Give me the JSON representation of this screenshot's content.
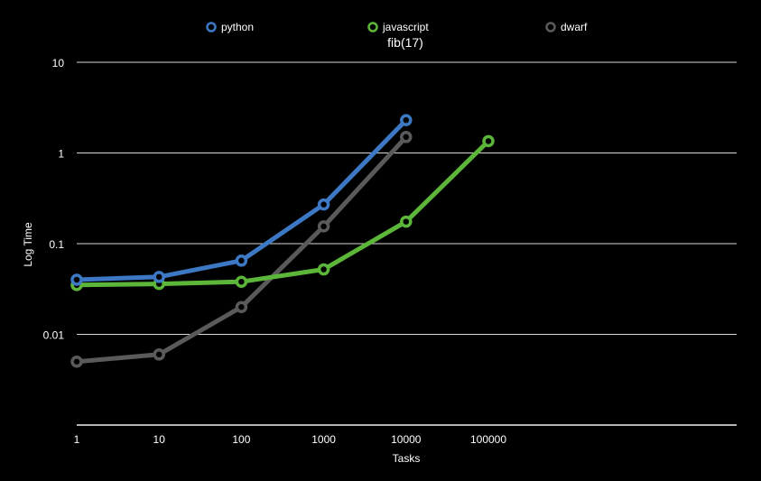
{
  "chart_data": {
    "type": "line",
    "title": "fib(17)",
    "xlabel": "Tasks",
    "ylabel": "Log Time",
    "x_scale": "log",
    "y_scale": "log",
    "x_ticks": [
      "1",
      "10",
      "100",
      "1000",
      "10000",
      "100000"
    ],
    "y_ticks": [
      "10",
      "1",
      "0.1",
      "0.01"
    ],
    "xlim": [
      1,
      10000000
    ],
    "ylim": [
      0.001,
      10
    ],
    "grid": "horizontal",
    "legend_position": "top",
    "background": "#000000",
    "series": [
      {
        "name": "python",
        "color": "#3c78c4",
        "x": [
          1,
          10,
          100,
          1000,
          10000
        ],
        "y": [
          0.04,
          0.043,
          0.065,
          0.27,
          2.3
        ]
      },
      {
        "name": "javascript",
        "color": "#5cb63a",
        "x": [
          1,
          10,
          100,
          1000,
          10000,
          100000
        ],
        "y": [
          0.035,
          0.036,
          0.038,
          0.052,
          0.175,
          1.35
        ]
      },
      {
        "name": "dwarf",
        "color": "#5a5a5a",
        "x": [
          1,
          10,
          100,
          1000,
          10000
        ],
        "y": [
          0.005,
          0.006,
          0.02,
          0.155,
          1.5
        ]
      }
    ]
  }
}
